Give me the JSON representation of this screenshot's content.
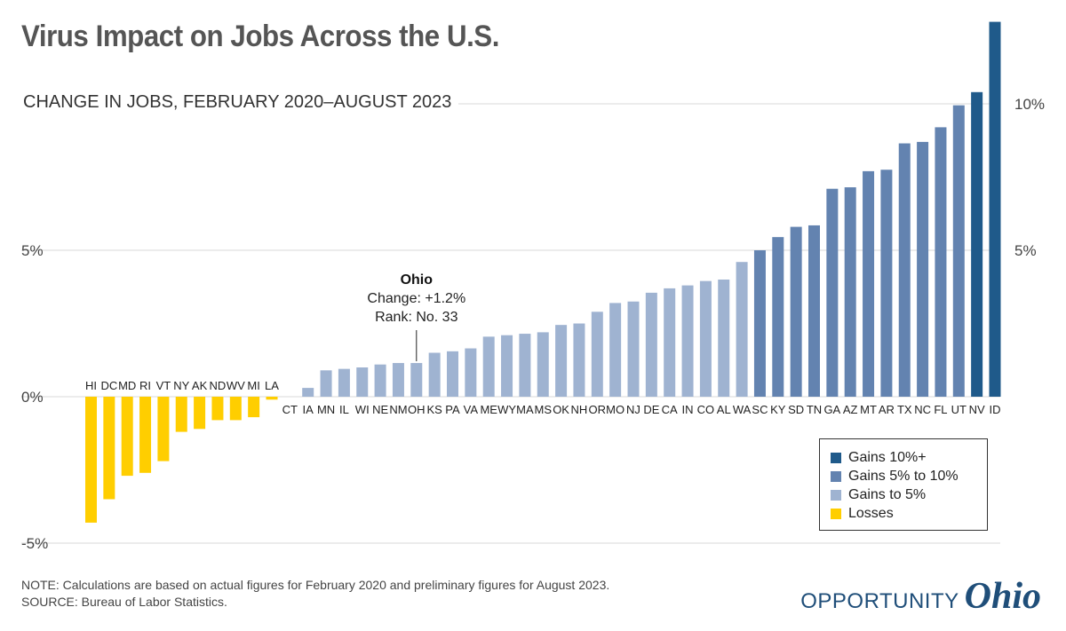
{
  "title": "Virus Impact on Jobs Across the U.S.",
  "subtitle": "CHANGE IN JOBS, FEBRUARY 2020–AUGUST 2023",
  "note": "NOTE: Calculations are based on actual figures for February 2020 and preliminary figures for August 2023.",
  "source": "SOURCE: Bureau of Labor Statistics.",
  "logo": {
    "text": "OPPORTUNITY",
    "script": "Ohio"
  },
  "annotation": {
    "state": "Ohio",
    "change": "Change: +1.2%",
    "rank": "Rank: No. 33"
  },
  "legend": [
    {
      "label": "Gains 10%+",
      "color": "#1f5a8a"
    },
    {
      "label": "Gains 5% to 10%",
      "color": "#6383b0"
    },
    {
      "label": "Gains to 5%",
      "color": "#9fb3d1"
    },
    {
      "label": "Losses",
      "color": "#ffce00"
    }
  ],
  "chart_data": {
    "type": "bar",
    "ylim": [
      -5,
      13
    ],
    "y_ticks_left": [
      "5%",
      "0%",
      "-5%"
    ],
    "y_ticks_right": [
      "10%",
      "5%"
    ],
    "tick_values": [
      10,
      5,
      0,
      -5
    ],
    "categories": [
      "HI",
      "DC",
      "MD",
      "RI",
      "VT",
      "NY",
      "AK",
      "ND",
      "WV",
      "MI",
      "LA",
      "CT",
      "IA",
      "MN",
      "IL",
      "WI",
      "NE",
      "NM",
      "OH",
      "KS",
      "PA",
      "VA",
      "ME",
      "WY",
      "MA",
      "MS",
      "OK",
      "NH",
      "OR",
      "MO",
      "NJ",
      "DE",
      "CA",
      "IN",
      "CO",
      "AL",
      "WA",
      "SC",
      "KY",
      "SD",
      "TN",
      "GA",
      "AZ",
      "MT",
      "AR",
      "TX",
      "NC",
      "FL",
      "UT",
      "NV",
      "ID"
    ],
    "values": [
      -4.3,
      -3.5,
      -2.7,
      -2.6,
      -2.2,
      -1.2,
      -1.1,
      -0.8,
      -0.8,
      -0.7,
      -0.1,
      0.0,
      0.3,
      0.9,
      0.95,
      1.0,
      1.1,
      1.15,
      1.15,
      1.5,
      1.55,
      1.65,
      2.05,
      2.1,
      2.15,
      2.2,
      2.45,
      2.5,
      2.9,
      3.2,
      3.25,
      3.55,
      3.7,
      3.8,
      3.95,
      4.0,
      4.6,
      5.0,
      5.45,
      5.8,
      5.85,
      7.1,
      7.15,
      7.7,
      7.75,
      8.65,
      8.7,
      9.2,
      9.95,
      10.4,
      12.8
    ],
    "categories_colors": {
      "loss": "#ffce00",
      "gain_under_5": "#9fb3d1",
      "gain_5_10": "#6383b0",
      "gain_10_plus": "#1f5a8a"
    }
  }
}
